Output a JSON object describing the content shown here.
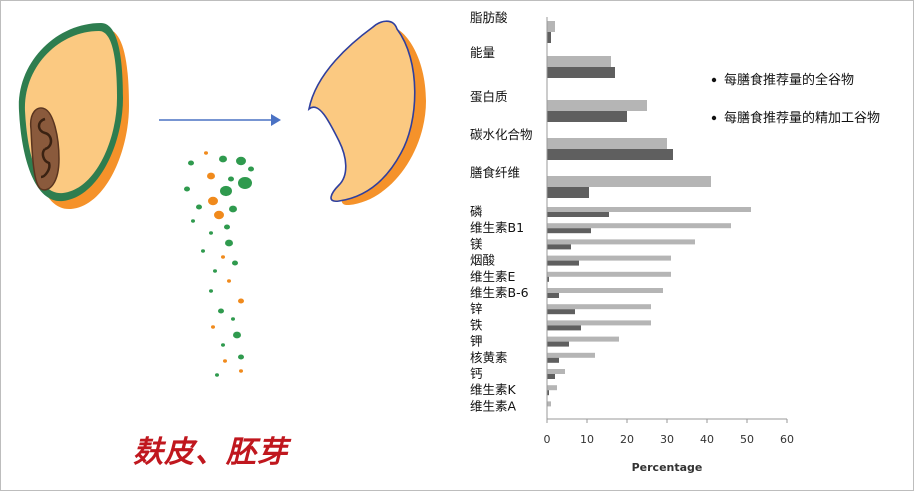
{
  "illustration": {
    "label": "麸皮、胚芽",
    "colors": {
      "grain": "#fbc981",
      "shadow": "#f5922a",
      "bran_green": "#2e7d4f",
      "outline_blue": "#2f3f9e",
      "germ": "#8a5a3c",
      "arrow": "#4a72c4",
      "particle_orange": "#f08a1c",
      "particle_green": "#2f9a4e",
      "label": "#c0171e"
    }
  },
  "chart_data": {
    "type": "bar",
    "orientation": "horizontal",
    "categories": [
      "脂肪酸",
      "能量",
      "蛋白质",
      "碳水化合物",
      "膳食纤维",
      "磷",
      "维生素B1",
      "镁",
      "烟酸",
      "维生素E",
      "维生素B-6",
      "锌",
      "铁",
      "钾",
      "核黄素",
      "钙",
      "维生素K",
      "维生素A"
    ],
    "series": [
      {
        "name": "每膳食推荐量的全谷物",
        "color": "#b5b5b5",
        "values": [
          2,
          16,
          25,
          30,
          41,
          51,
          46,
          37,
          31,
          31,
          29,
          26,
          26,
          18,
          12,
          4.5,
          2.5,
          1
        ]
      },
      {
        "name": "每膳食推荐量的精加工谷物",
        "color": "#5f5f5f",
        "values": [
          1,
          17,
          20,
          31.5,
          10.5,
          15.5,
          11,
          6,
          8,
          0.5,
          3,
          7,
          8.5,
          5.5,
          3,
          2,
          0.5,
          0
        ]
      }
    ],
    "xlabel": "Percentage",
    "ylabel": "",
    "xlim": [
      0,
      60
    ],
    "xticks": [
      "0",
      "10",
      "20",
      "30",
      "40",
      "50",
      "60"
    ],
    "grid": false,
    "legend_position": "right"
  }
}
